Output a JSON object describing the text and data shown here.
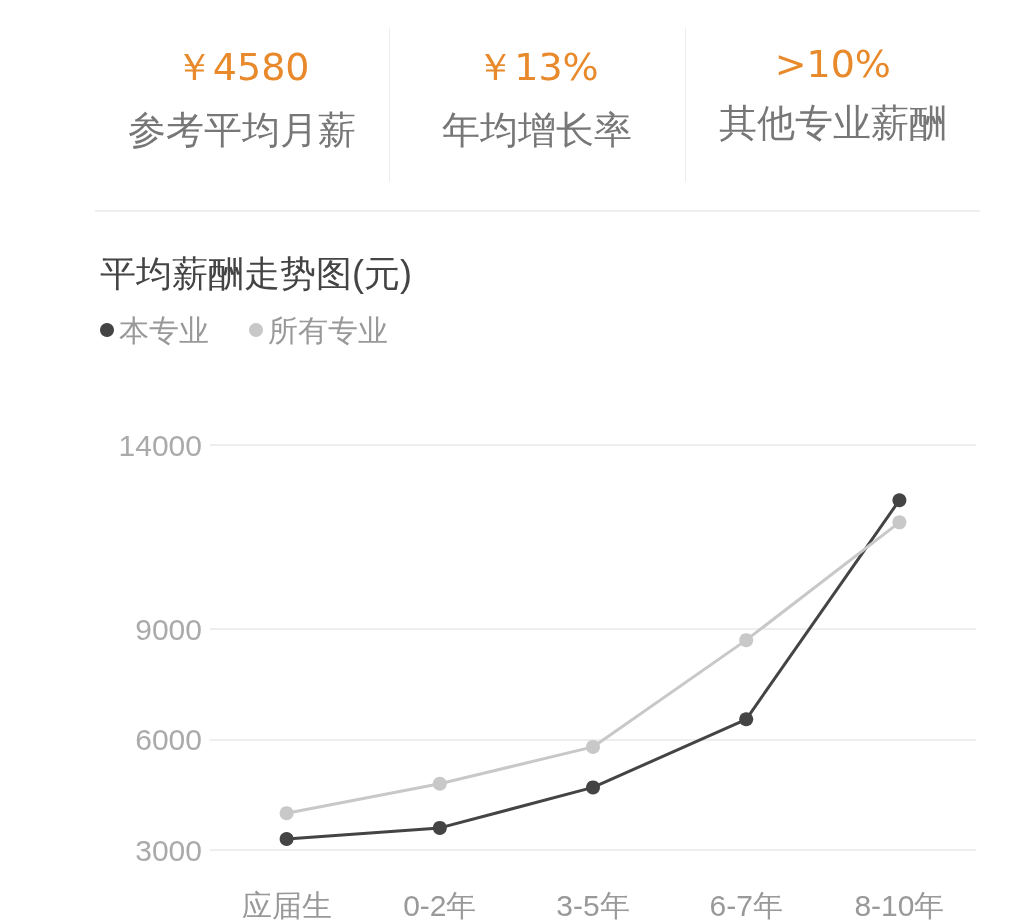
{
  "chart_data": {
    "type": "line",
    "title": "平均薪酬走势图(元)",
    "annotations": [
      "￥4580",
      "参考平均月薪",
      "￥13%",
      "年均增长率",
      ">10%",
      "其他专业薪酬"
    ],
    "categories": [
      "应届生",
      "0-2年",
      "3-5年",
      "6-7年",
      "8-10年"
    ],
    "series": [
      {
        "name": "本专业",
        "color": "#444444",
        "values": [
          3300,
          3600,
          4700,
          6550,
          12500
        ]
      },
      {
        "name": "所有专业",
        "color": "#c8c8c8",
        "values": [
          4000,
          4800,
          5800,
          8700,
          11900
        ]
      }
    ],
    "ylim": [
      3000,
      14000
    ],
    "yticks": [
      3000,
      6000,
      9000,
      14000
    ],
    "grid": "y",
    "legend": "top left",
    "marker": "circle",
    "line_style": "solid"
  }
}
